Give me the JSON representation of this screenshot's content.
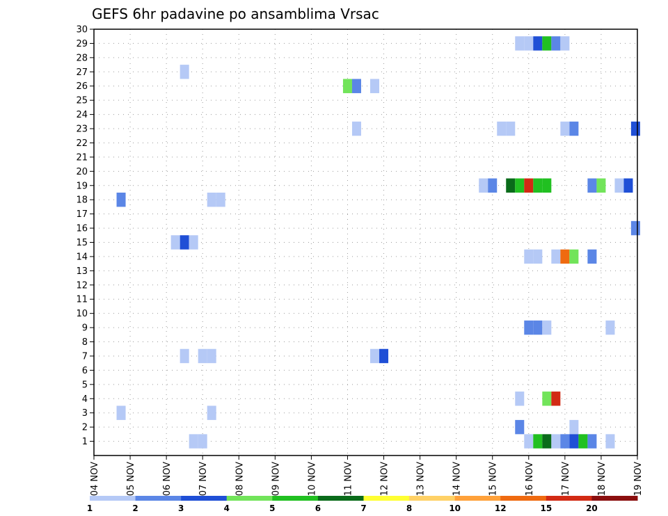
{
  "chart_data": {
    "type": "heatmap",
    "title": "GEFS 6hr padavine po ansamblima Vrsac",
    "xlabel": "",
    "ylabel": "",
    "x_tick_labels": [
      "04 NOV",
      "05 NOV",
      "06 NOV",
      "07 NOV",
      "08 NOV",
      "09 NOV",
      "10 NOV",
      "11 NOV",
      "12 NOV",
      "13 NOV",
      "14 NOV",
      "15 NOV",
      "16 NOV",
      "17 NOV",
      "18 NOV",
      "19 NOV"
    ],
    "x_range_days": [
      0,
      15
    ],
    "y_tick_labels": [
      "1",
      "2",
      "3",
      "4",
      "5",
      "6",
      "7",
      "8",
      "9",
      "10",
      "11",
      "12",
      "13",
      "14",
      "15",
      "16",
      "17",
      "18",
      "19",
      "20",
      "21",
      "22",
      "23",
      "24",
      "25",
      "26",
      "27",
      "28",
      "29",
      "30"
    ],
    "y_range": [
      0,
      30
    ],
    "grid": true,
    "colorbar": {
      "labels": [
        "1",
        "2",
        "3",
        "4",
        "5",
        "6",
        "7",
        "8",
        "10",
        "12",
        "15",
        "20"
      ],
      "colors": [
        "#b5c9f6",
        "#5b86e6",
        "#1f4fd6",
        "#72e45a",
        "#21c021",
        "#0a6b1a",
        "#ffff32",
        "#ffd166",
        "#ffa13a",
        "#ef6a10",
        "#d22a14",
        "#8b0f0f"
      ]
    },
    "cells": [
      {
        "member": 29,
        "day": 11.75,
        "level": 1
      },
      {
        "member": 29,
        "day": 12.0,
        "level": 1
      },
      {
        "member": 29,
        "day": 12.25,
        "level": 3
      },
      {
        "member": 29,
        "day": 12.5,
        "level": 5
      },
      {
        "member": 29,
        "day": 12.75,
        "level": 2
      },
      {
        "member": 29,
        "day": 13.0,
        "level": 1
      },
      {
        "member": 27,
        "day": 2.5,
        "level": 1
      },
      {
        "member": 26,
        "day": 7.0,
        "level": 4
      },
      {
        "member": 26,
        "day": 7.25,
        "level": 2
      },
      {
        "member": 26,
        "day": 7.75,
        "level": 1
      },
      {
        "member": 23,
        "day": 7.25,
        "level": 1
      },
      {
        "member": 23,
        "day": 11.25,
        "level": 1
      },
      {
        "member": 23,
        "day": 11.5,
        "level": 1
      },
      {
        "member": 23,
        "day": 13.0,
        "level": 1
      },
      {
        "member": 23,
        "day": 13.25,
        "level": 2
      },
      {
        "member": 23,
        "day": 14.95,
        "level": 3
      },
      {
        "member": 19,
        "day": 10.75,
        "level": 1
      },
      {
        "member": 19,
        "day": 11.0,
        "level": 2
      },
      {
        "member": 19,
        "day": 11.5,
        "level": 6
      },
      {
        "member": 19,
        "day": 11.75,
        "level": 5
      },
      {
        "member": 19,
        "day": 12.0,
        "level": 11
      },
      {
        "member": 19,
        "day": 12.25,
        "level": 5
      },
      {
        "member": 19,
        "day": 12.5,
        "level": 5
      },
      {
        "member": 19,
        "day": 13.75,
        "level": 2
      },
      {
        "member": 19,
        "day": 14.0,
        "level": 4
      },
      {
        "member": 19,
        "day": 14.5,
        "level": 1
      },
      {
        "member": 19,
        "day": 14.75,
        "level": 3
      },
      {
        "member": 18,
        "day": 0.75,
        "level": 2
      },
      {
        "member": 18,
        "day": 3.25,
        "level": 1
      },
      {
        "member": 18,
        "day": 3.5,
        "level": 1
      },
      {
        "member": 16,
        "day": 14.95,
        "level": 2
      },
      {
        "member": 15,
        "day": 2.25,
        "level": 1
      },
      {
        "member": 15,
        "day": 2.5,
        "level": 3
      },
      {
        "member": 15,
        "day": 2.75,
        "level": 1
      },
      {
        "member": 14,
        "day": 12.0,
        "level": 1
      },
      {
        "member": 14,
        "day": 12.25,
        "level": 1
      },
      {
        "member": 14,
        "day": 12.75,
        "level": 1
      },
      {
        "member": 14,
        "day": 13.0,
        "level": 10
      },
      {
        "member": 14,
        "day": 13.25,
        "level": 4
      },
      {
        "member": 14,
        "day": 13.75,
        "level": 2
      },
      {
        "member": 9,
        "day": 12.0,
        "level": 2
      },
      {
        "member": 9,
        "day": 12.25,
        "level": 2
      },
      {
        "member": 9,
        "day": 12.5,
        "level": 1
      },
      {
        "member": 9,
        "day": 14.25,
        "level": 1
      },
      {
        "member": 7,
        "day": 2.5,
        "level": 1
      },
      {
        "member": 7,
        "day": 3.0,
        "level": 1
      },
      {
        "member": 7,
        "day": 3.25,
        "level": 1
      },
      {
        "member": 7,
        "day": 7.75,
        "level": 1
      },
      {
        "member": 7,
        "day": 8.0,
        "level": 3
      },
      {
        "member": 4,
        "day": 11.75,
        "level": 1
      },
      {
        "member": 4,
        "day": 12.5,
        "level": 4
      },
      {
        "member": 4,
        "day": 12.75,
        "level": 11
      },
      {
        "member": 3,
        "day": 0.75,
        "level": 1
      },
      {
        "member": 3,
        "day": 3.25,
        "level": 1
      },
      {
        "member": 2,
        "day": 11.75,
        "level": 2
      },
      {
        "member": 2,
        "day": 13.25,
        "level": 1
      },
      {
        "member": 1,
        "day": 2.75,
        "level": 1
      },
      {
        "member": 1,
        "day": 3.0,
        "level": 1
      },
      {
        "member": 1,
        "day": 12.0,
        "level": 1
      },
      {
        "member": 1,
        "day": 12.25,
        "level": 5
      },
      {
        "member": 1,
        "day": 12.5,
        "level": 6
      },
      {
        "member": 1,
        "day": 12.75,
        "level": 1
      },
      {
        "member": 1,
        "day": 13.0,
        "level": 2
      },
      {
        "member": 1,
        "day": 13.25,
        "level": 3
      },
      {
        "member": 1,
        "day": 13.5,
        "level": 5
      },
      {
        "member": 1,
        "day": 13.75,
        "level": 2
      },
      {
        "member": 1,
        "day": 14.25,
        "level": 1
      }
    ]
  }
}
